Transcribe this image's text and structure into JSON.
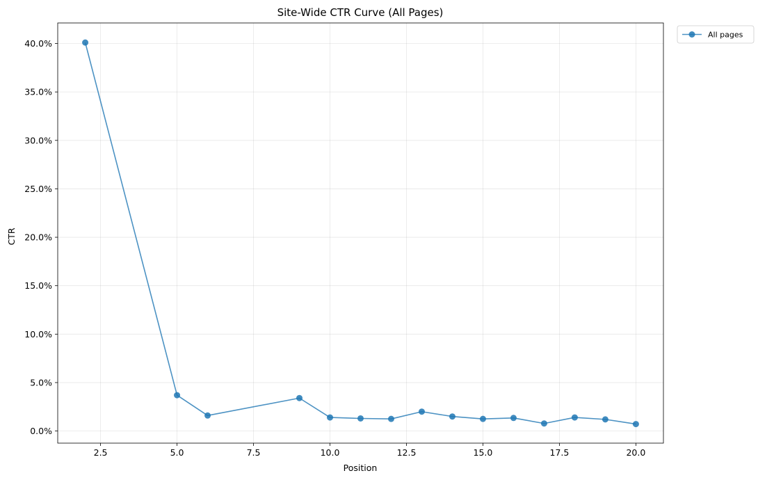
{
  "chart_data": {
    "type": "line",
    "title": "Site-Wide CTR Curve (All Pages)",
    "xlabel": "Position",
    "ylabel": "CTR",
    "xlim": [
      1.1,
      20.9
    ],
    "ylim": [
      -0.0125,
      0.4212
    ],
    "xticks": [
      2.5,
      5.0,
      7.5,
      10.0,
      12.5,
      15.0,
      17.5,
      20.0
    ],
    "xtick_labels": [
      "2.5",
      "5.0",
      "7.5",
      "10.0",
      "12.5",
      "15.0",
      "17.5",
      "20.0"
    ],
    "yticks": [
      0.0,
      0.05,
      0.1,
      0.15,
      0.2,
      0.25,
      0.3,
      0.35,
      0.4
    ],
    "ytick_labels": [
      "0.0%",
      "5.0%",
      "10.0%",
      "15.0%",
      "20.0%",
      "25.0%",
      "30.0%",
      "35.0%",
      "40.0%"
    ],
    "grid": true,
    "legend_position": "outside-top-right",
    "series": [
      {
        "name": "All pages",
        "color": "#1f77b4",
        "x": [
          2,
          5,
          6,
          9,
          10,
          11,
          12,
          13,
          14,
          15,
          16,
          17,
          18,
          19,
          20
        ],
        "y": [
          0.401,
          0.037,
          0.016,
          0.034,
          0.014,
          0.013,
          0.0125,
          0.02,
          0.015,
          0.0125,
          0.0135,
          0.0078,
          0.014,
          0.012,
          0.0072
        ]
      }
    ]
  }
}
